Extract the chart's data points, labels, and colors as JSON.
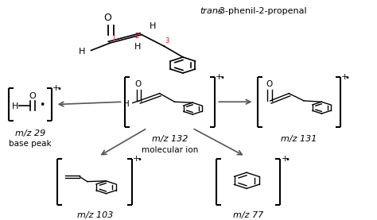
{
  "bg_color": "#ffffff",
  "text_color": "#000000",
  "red_color": "#cc0000",
  "arrow_color": "#555555",
  "title_italic": "trans",
  "title_rest": "-3-phenil-2-propenal",
  "labels": {
    "center": "m/z 132",
    "center_sub": "molecular ion",
    "left": "m/z 29",
    "left_sub": "base peak",
    "right": "m/z 131",
    "bl": "m/z 103",
    "br": "m/z 77"
  }
}
